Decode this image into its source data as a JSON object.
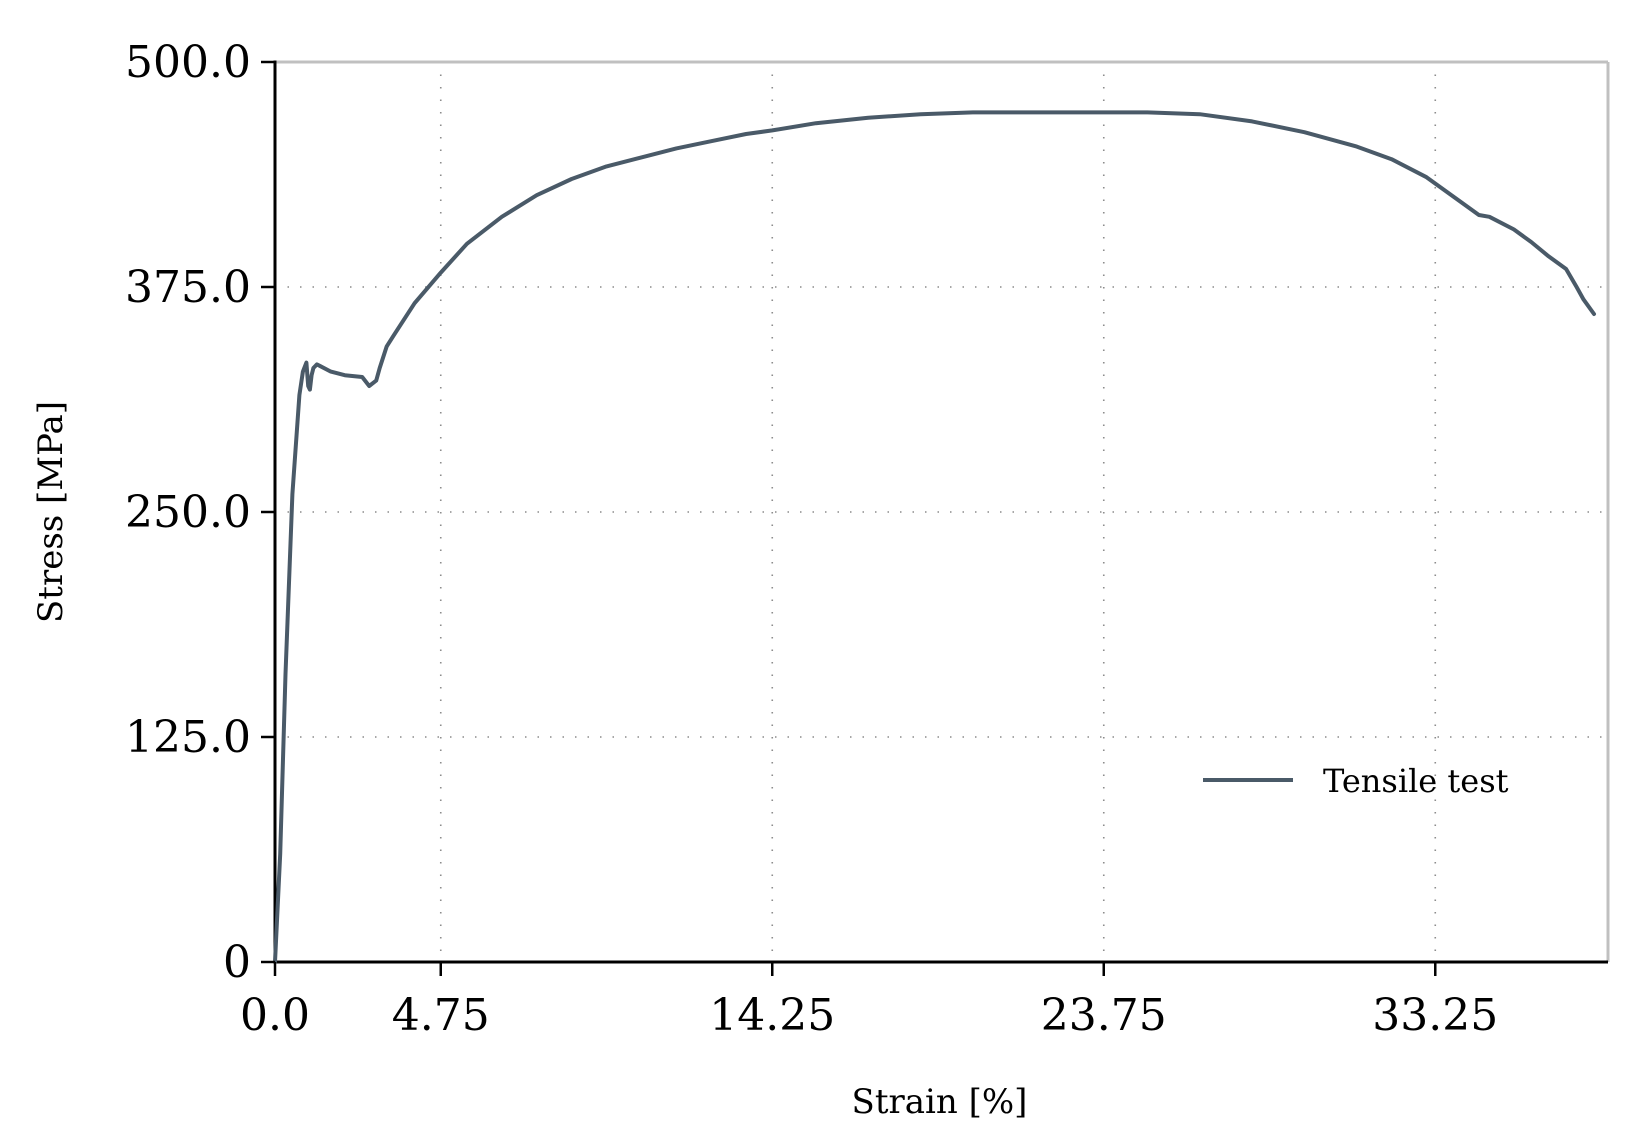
{
  "chart_data": {
    "type": "line",
    "xlabel": "Strain [%]",
    "ylabel": "Stress [MPa]",
    "xlim": [
      0,
      38.2
    ],
    "ylim": [
      0,
      500
    ],
    "x_ticks": [
      0.0,
      4.75,
      14.25,
      23.75,
      33.25
    ],
    "x_tick_labels": [
      "0.0",
      "4.75",
      "14.25",
      "23.75",
      "33.25"
    ],
    "y_ticks": [
      0,
      125,
      250,
      375,
      500
    ],
    "y_tick_labels": [
      "0",
      "125.0",
      "250.0",
      "375.0",
      "500.0"
    ],
    "grid": true,
    "legend": {
      "position": "lower-right"
    },
    "colors": {
      "line": "#4a5a68",
      "axis": "#000000",
      "frame": "#c0c0c0",
      "grid": "#8c8c8c"
    },
    "series": [
      {
        "name": "Tensile test",
        "x": [
          0.0,
          0.15,
          0.3,
          0.5,
          0.7,
          0.8,
          0.9,
          0.95,
          1.0,
          1.05,
          1.1,
          1.2,
          1.3,
          1.6,
          2.0,
          2.5,
          2.7,
          2.9,
          3.0,
          3.2,
          3.4,
          4.0,
          4.75,
          5.5,
          6.5,
          7.5,
          8.5,
          9.5,
          10.5,
          11.5,
          12.5,
          13.5,
          14.25,
          15.5,
          17.0,
          18.5,
          20.0,
          21.0,
          23.75,
          25.0,
          26.5,
          28.0,
          29.5,
          31.0,
          32.0,
          33.0,
          34.0,
          34.5,
          34.8,
          35.5,
          36.0,
          36.5,
          37.0,
          37.3,
          37.5,
          37.8
        ],
        "y": [
          0,
          60,
          160,
          260,
          315,
          328,
          333,
          320,
          318,
          326,
          330,
          332,
          331,
          328,
          326,
          325,
          320,
          323,
          330,
          342,
          348,
          366,
          383,
          399,
          414,
          426,
          435,
          442,
          447,
          452,
          456,
          460,
          462,
          466,
          469,
          471,
          472,
          472,
          472,
          472,
          471,
          467,
          461,
          453,
          446,
          436,
          422,
          415,
          414,
          407,
          400,
          392,
          385,
          375,
          368,
          360
        ]
      }
    ]
  }
}
